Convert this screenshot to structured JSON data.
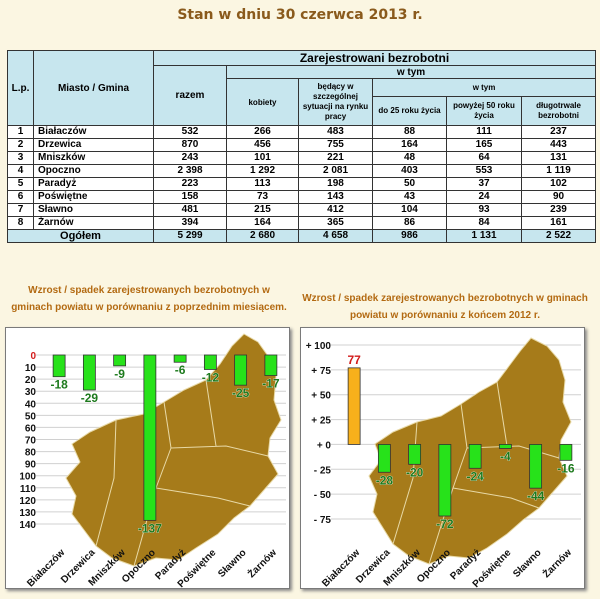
{
  "page_title": "Stan w dniu 30 czerwca 2013 r.",
  "table": {
    "lp_header": "L.p.",
    "city_header": "Miasto / Gmina",
    "group_header": "Zarejestrowani bezrobotni",
    "razem_header": "razem",
    "wtym_header": "w tym",
    "wtym2_header": "w tym",
    "kobiety_header": "kobiety",
    "szczegolnej_header": "będący w szczególnej sytuacji na rynku pracy",
    "do25_header": "do 25 roku życia",
    "pow50_header": "powyżej 50 roku życia",
    "dlugo_header": "długotrwale bezrobotni",
    "rows": [
      {
        "lp": "1",
        "name": "Białaczów",
        "razem": "532",
        "kobiety": "266",
        "szcz": "483",
        "do25": "88",
        "pow50": "111",
        "dlugo": "237"
      },
      {
        "lp": "2",
        "name": "Drzewica",
        "razem": "870",
        "kobiety": "456",
        "szcz": "755",
        "do25": "164",
        "pow50": "165",
        "dlugo": "443"
      },
      {
        "lp": "3",
        "name": "Mniszków",
        "razem": "243",
        "kobiety": "101",
        "szcz": "221",
        "do25": "48",
        "pow50": "64",
        "dlugo": "131"
      },
      {
        "lp": "4",
        "name": "Opoczno",
        "razem": "2 398",
        "kobiety": "1 292",
        "szcz": "2 081",
        "do25": "403",
        "pow50": "553",
        "dlugo": "1 119"
      },
      {
        "lp": "5",
        "name": "Paradyż",
        "razem": "223",
        "kobiety": "113",
        "szcz": "198",
        "do25": "50",
        "pow50": "37",
        "dlugo": "102"
      },
      {
        "lp": "6",
        "name": "Poświętne",
        "razem": "158",
        "kobiety": "73",
        "szcz": "143",
        "do25": "43",
        "pow50": "24",
        "dlugo": "90"
      },
      {
        "lp": "7",
        "name": "Sławno",
        "razem": "481",
        "kobiety": "215",
        "szcz": "412",
        "do25": "104",
        "pow50": "93",
        "dlugo": "239"
      },
      {
        "lp": "8",
        "name": "Żarnów",
        "razem": "394",
        "kobiety": "164",
        "szcz": "365",
        "do25": "86",
        "pow50": "84",
        "dlugo": "161"
      }
    ],
    "total": {
      "label": "Ogółem",
      "razem": "5 299",
      "kobiety": "2 680",
      "szcz": "4 658",
      "do25": "986",
      "pow50": "1 131",
      "dlugo": "2 522"
    }
  },
  "caption_left": "Wzrost / spadek zarejestrowanych bezrobotnych w gminach powiatu w porównaniu z poprzednim miesiącem.",
  "caption_right": "Wzrost / spadek zarejestrowanych bezrobotnych w gminach powiatu w porównaniu z końcem 2012 r.",
  "colors": {
    "positive": "#f7b01b",
    "negative": "#27e21a",
    "map": "#a67b1a",
    "grid": "#d0d0d0"
  },
  "chart_data": [
    {
      "type": "bar",
      "categories": [
        "Białaczów",
        "Drzewica",
        "Mniszków",
        "Opoczno",
        "Paradyż",
        "Poświętne",
        "Sławno",
        "Żarnów"
      ],
      "values": [
        -18,
        -29,
        -9,
        -137,
        -6,
        -12,
        -25,
        -17
      ],
      "value_labels": [
        "-18",
        "-29",
        "-9",
        "-137",
        "-6",
        "-12",
        "-25",
        "-17"
      ],
      "ylim": [
        0,
        140
      ],
      "y_inverted": true,
      "y_ticks": [
        0,
        10,
        20,
        30,
        40,
        50,
        60,
        70,
        80,
        90,
        100,
        110,
        120,
        130,
        140
      ],
      "y_tick_labels": [
        "0",
        "10",
        "20",
        "30",
        "40",
        "50",
        "60",
        "70",
        "80",
        "90",
        "100",
        "110",
        "120",
        "130",
        "140"
      ],
      "grid": true
    },
    {
      "type": "bar",
      "categories": [
        "Białaczów",
        "Drzewica",
        "Mniszków",
        "Opoczno",
        "Paradyż",
        "Poświętne",
        "Sławno",
        "Żarnów"
      ],
      "values": [
        77,
        -28,
        -20,
        -72,
        -24,
        -4,
        -44,
        -16
      ],
      "value_labels": [
        "77",
        "-28",
        "-20",
        "-72",
        "-24",
        "-4",
        "-44",
        "-16"
      ],
      "ylim": [
        -75,
        100
      ],
      "y_ticks": [
        100,
        75,
        50,
        25,
        0,
        -25,
        -50,
        -75
      ],
      "y_tick_labels": [
        "+ 100",
        "+ 75",
        "+ 50",
        "+ 25",
        "+ 0",
        "- 25",
        "- 50",
        "- 75"
      ],
      "grid": true
    }
  ]
}
